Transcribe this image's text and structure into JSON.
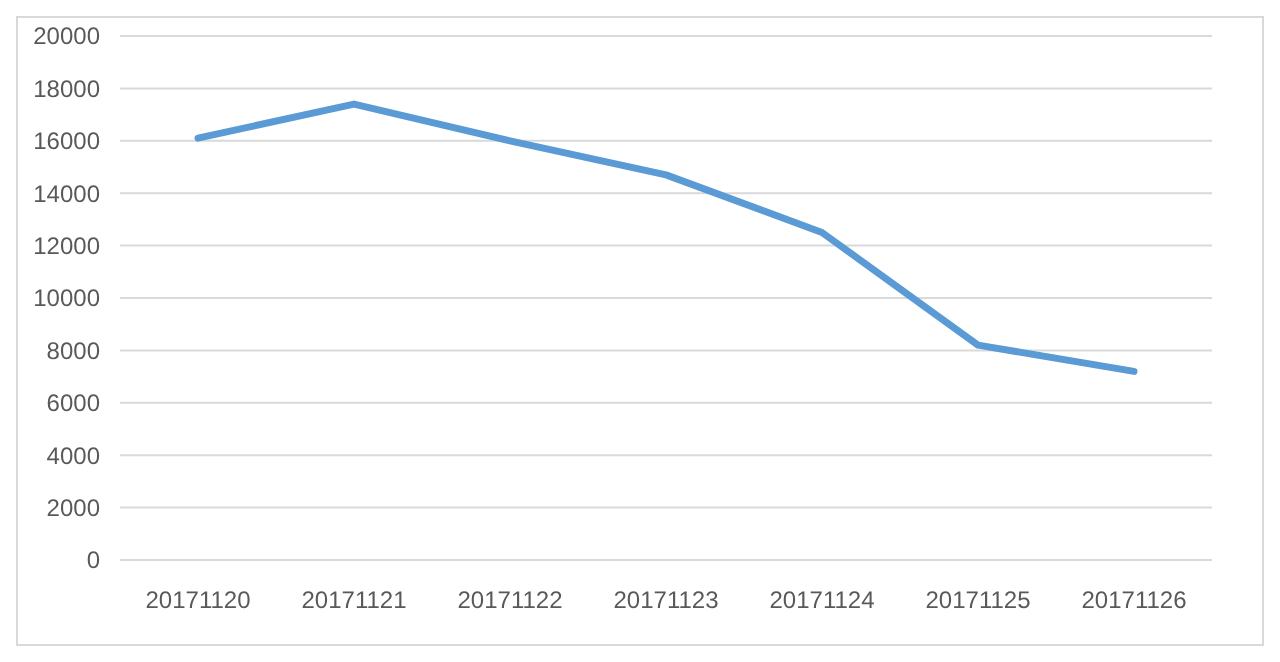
{
  "chart_data": {
    "type": "line",
    "categories": [
      "20171120",
      "20171121",
      "20171122",
      "20171123",
      "20171124",
      "20171125",
      "20171126"
    ],
    "series": [
      {
        "color": "#5b9bd5",
        "values": [
          16100,
          17400,
          16000,
          14700,
          12500,
          8200,
          7200
        ]
      }
    ],
    "ylim": [
      0,
      20000
    ],
    "yticks": [
      0,
      2000,
      4000,
      6000,
      8000,
      10000,
      12000,
      14000,
      16000,
      18000,
      20000
    ],
    "grid": "y",
    "marker": "none",
    "line_style": "solid"
  }
}
